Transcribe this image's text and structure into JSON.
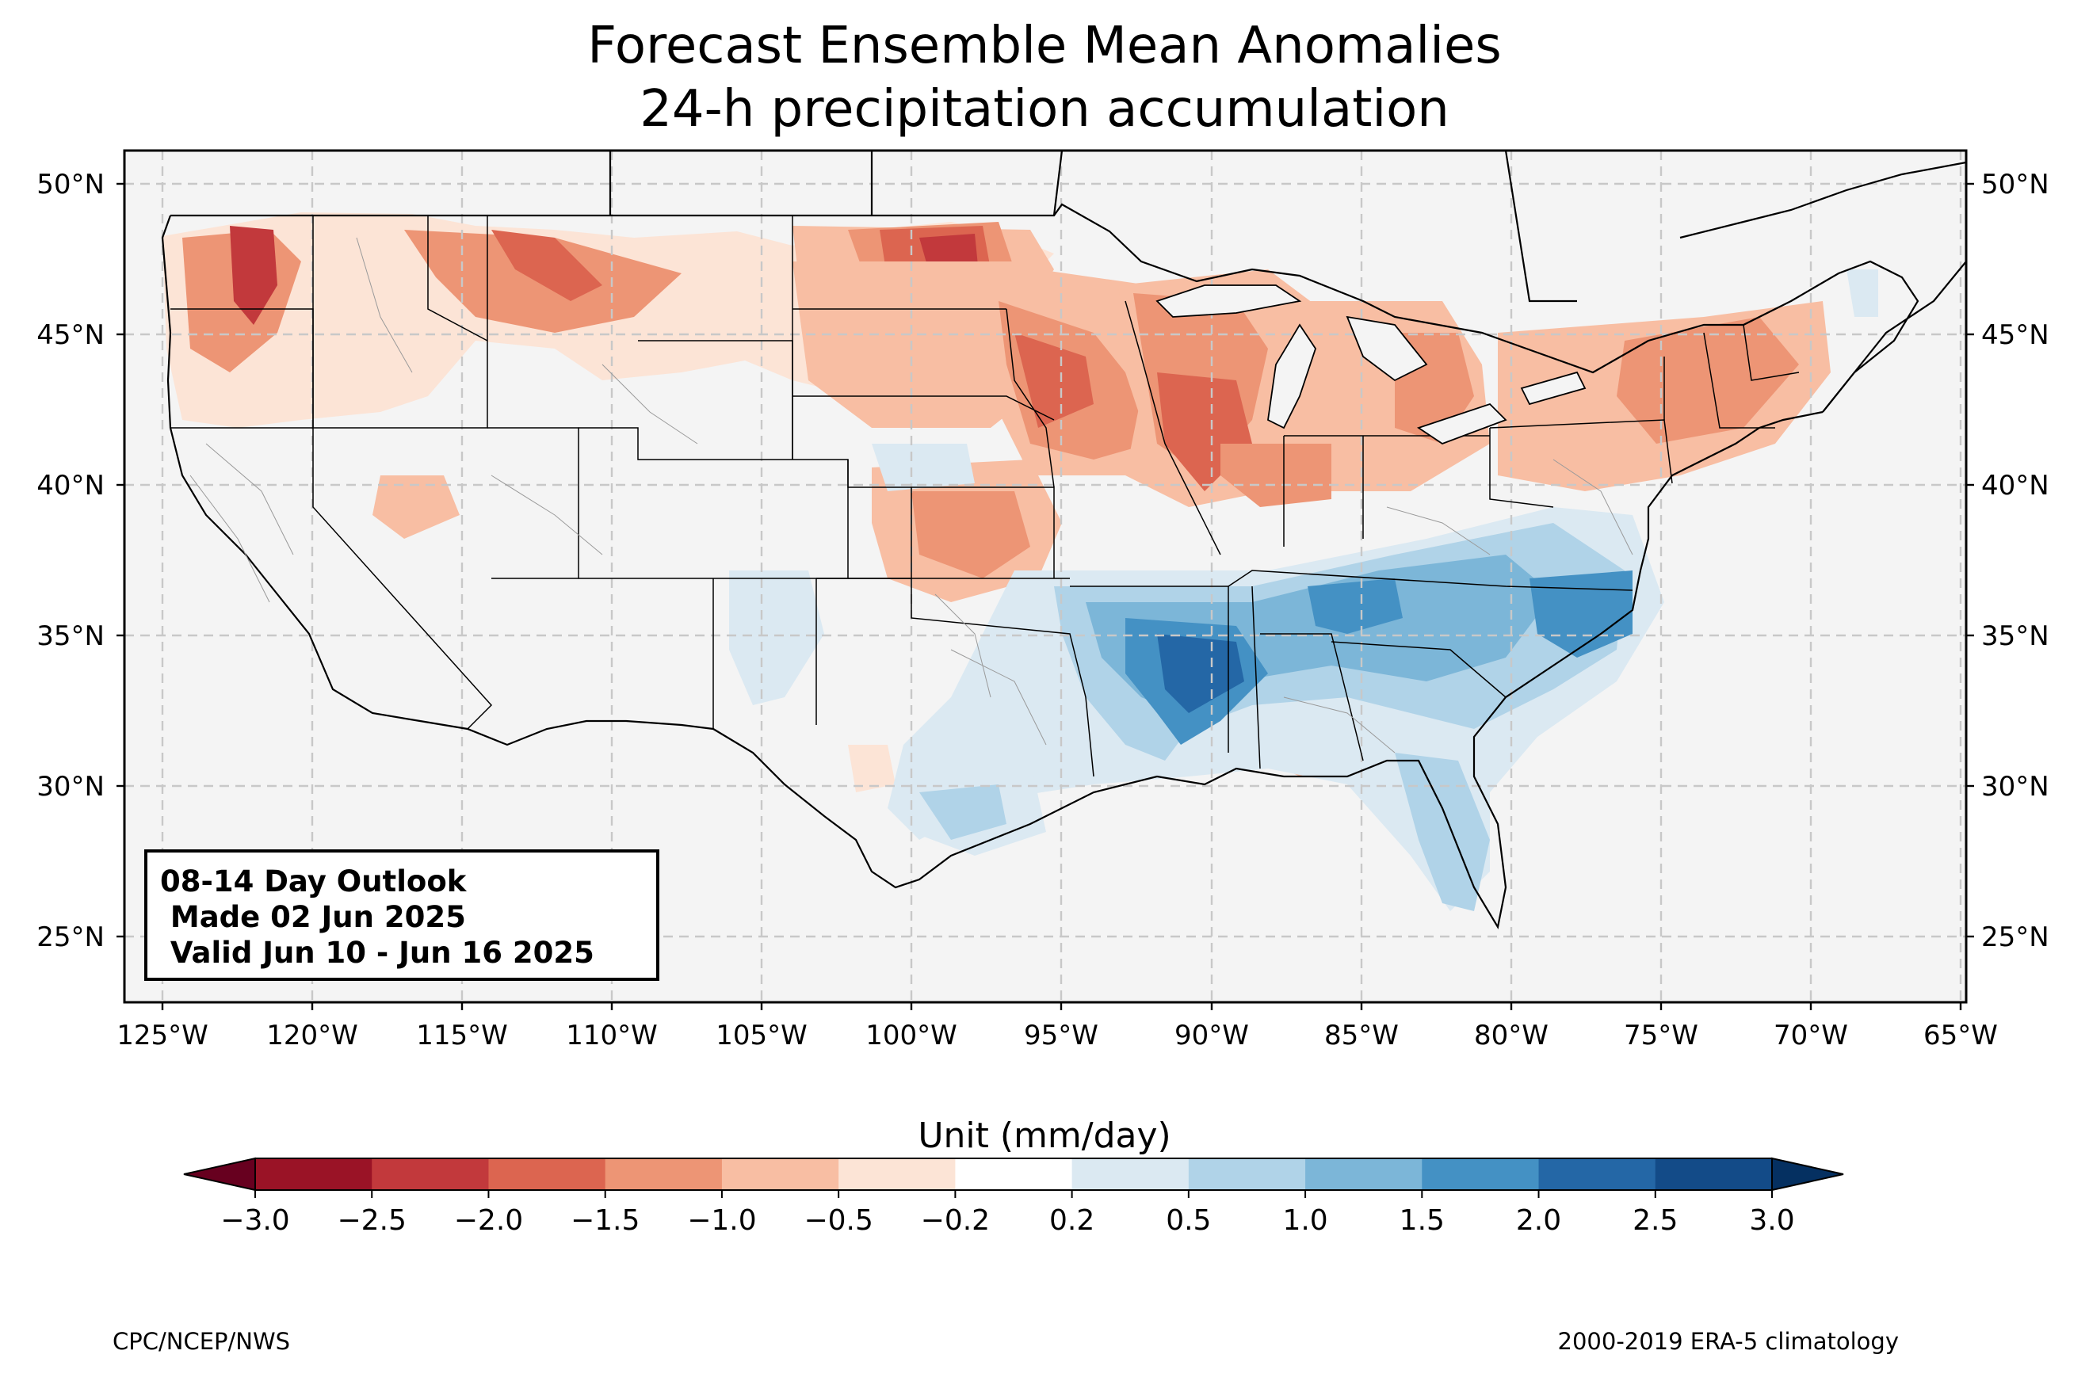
{
  "title": {
    "line1": "Forecast Ensemble Mean Anomalies",
    "line2": "24-h precipitation accumulation"
  },
  "outlook": {
    "line1": "08-14 Day Outlook",
    "line2": " Made 02 Jun 2025",
    "line3": " Valid Jun 10 - Jun 16 2025"
  },
  "lat_labels": [
    "50°N",
    "45°N",
    "40°N",
    "35°N",
    "30°N",
    "25°N"
  ],
  "lon_labels": [
    "125°W",
    "120°W",
    "115°W",
    "110°W",
    "105°W",
    "100°W",
    "95°W",
    "90°W",
    "85°W",
    "80°W",
    "75°W",
    "70°W",
    "65°W"
  ],
  "colorbar": {
    "title": "Unit (mm/day)",
    "ticks": [
      "−3.0",
      "−2.5",
      "−2.0",
      "−1.5",
      "−1.0",
      "−0.5",
      "−0.2",
      "0.2",
      "0.5",
      "1.0",
      "1.5",
      "2.0",
      "2.5",
      "3.0"
    ],
    "colors": [
      "#9a1326",
      "#c2393c",
      "#dc6550",
      "#ed9575",
      "#f8bea3",
      "#fce4d6",
      "#ffffff",
      "#dbe9f2",
      "#b0d3e8",
      "#7cb6d8",
      "#4491c4",
      "#2467a6",
      "#134b88"
    ],
    "under_color": "#67001f",
    "over_color": "#053061"
  },
  "map": {
    "land_color": "#f4f4f4",
    "regions": [
      {
        "name": "pacific-nw-dry",
        "lat": 46.5,
        "lon": -121.5,
        "value": -2.6
      },
      {
        "name": "northern-rockies-dry",
        "lat": 47.0,
        "lon": -112.5,
        "value": -1.8
      },
      {
        "name": "north-dakota-dry",
        "lat": 47.5,
        "lon": -100.0,
        "value": -2.5
      },
      {
        "name": "upper-midwest-dry",
        "lat": 43.5,
        "lon": -92.0,
        "value": -1.8
      },
      {
        "name": "kansas-dry",
        "lat": 38.5,
        "lon": -98.5,
        "value": -1.2
      },
      {
        "name": "northeast-dry",
        "lat": 43.0,
        "lon": -75.0,
        "value": -0.7
      },
      {
        "name": "lower-mississippi-wet",
        "lat": 34.0,
        "lon": -90.0,
        "value": 2.4
      },
      {
        "name": "tennessee-valley-wet",
        "lat": 35.5,
        "lon": -86.0,
        "value": 1.6
      },
      {
        "name": "north-carolina-wet",
        "lat": 35.5,
        "lon": -78.0,
        "value": 1.7
      },
      {
        "name": "florida-wet",
        "lat": 28.5,
        "lon": -81.5,
        "value": 0.8
      },
      {
        "name": "south-texas-wet",
        "lat": 29.5,
        "lon": -98.5,
        "value": 0.6
      },
      {
        "name": "new-mexico-wet",
        "lat": 35.0,
        "lon": -105.5,
        "value": 0.4
      }
    ]
  },
  "footer": {
    "left": "CPC/NCEP/NWS",
    "right": "2000-2019 ERA-5 climatology"
  }
}
